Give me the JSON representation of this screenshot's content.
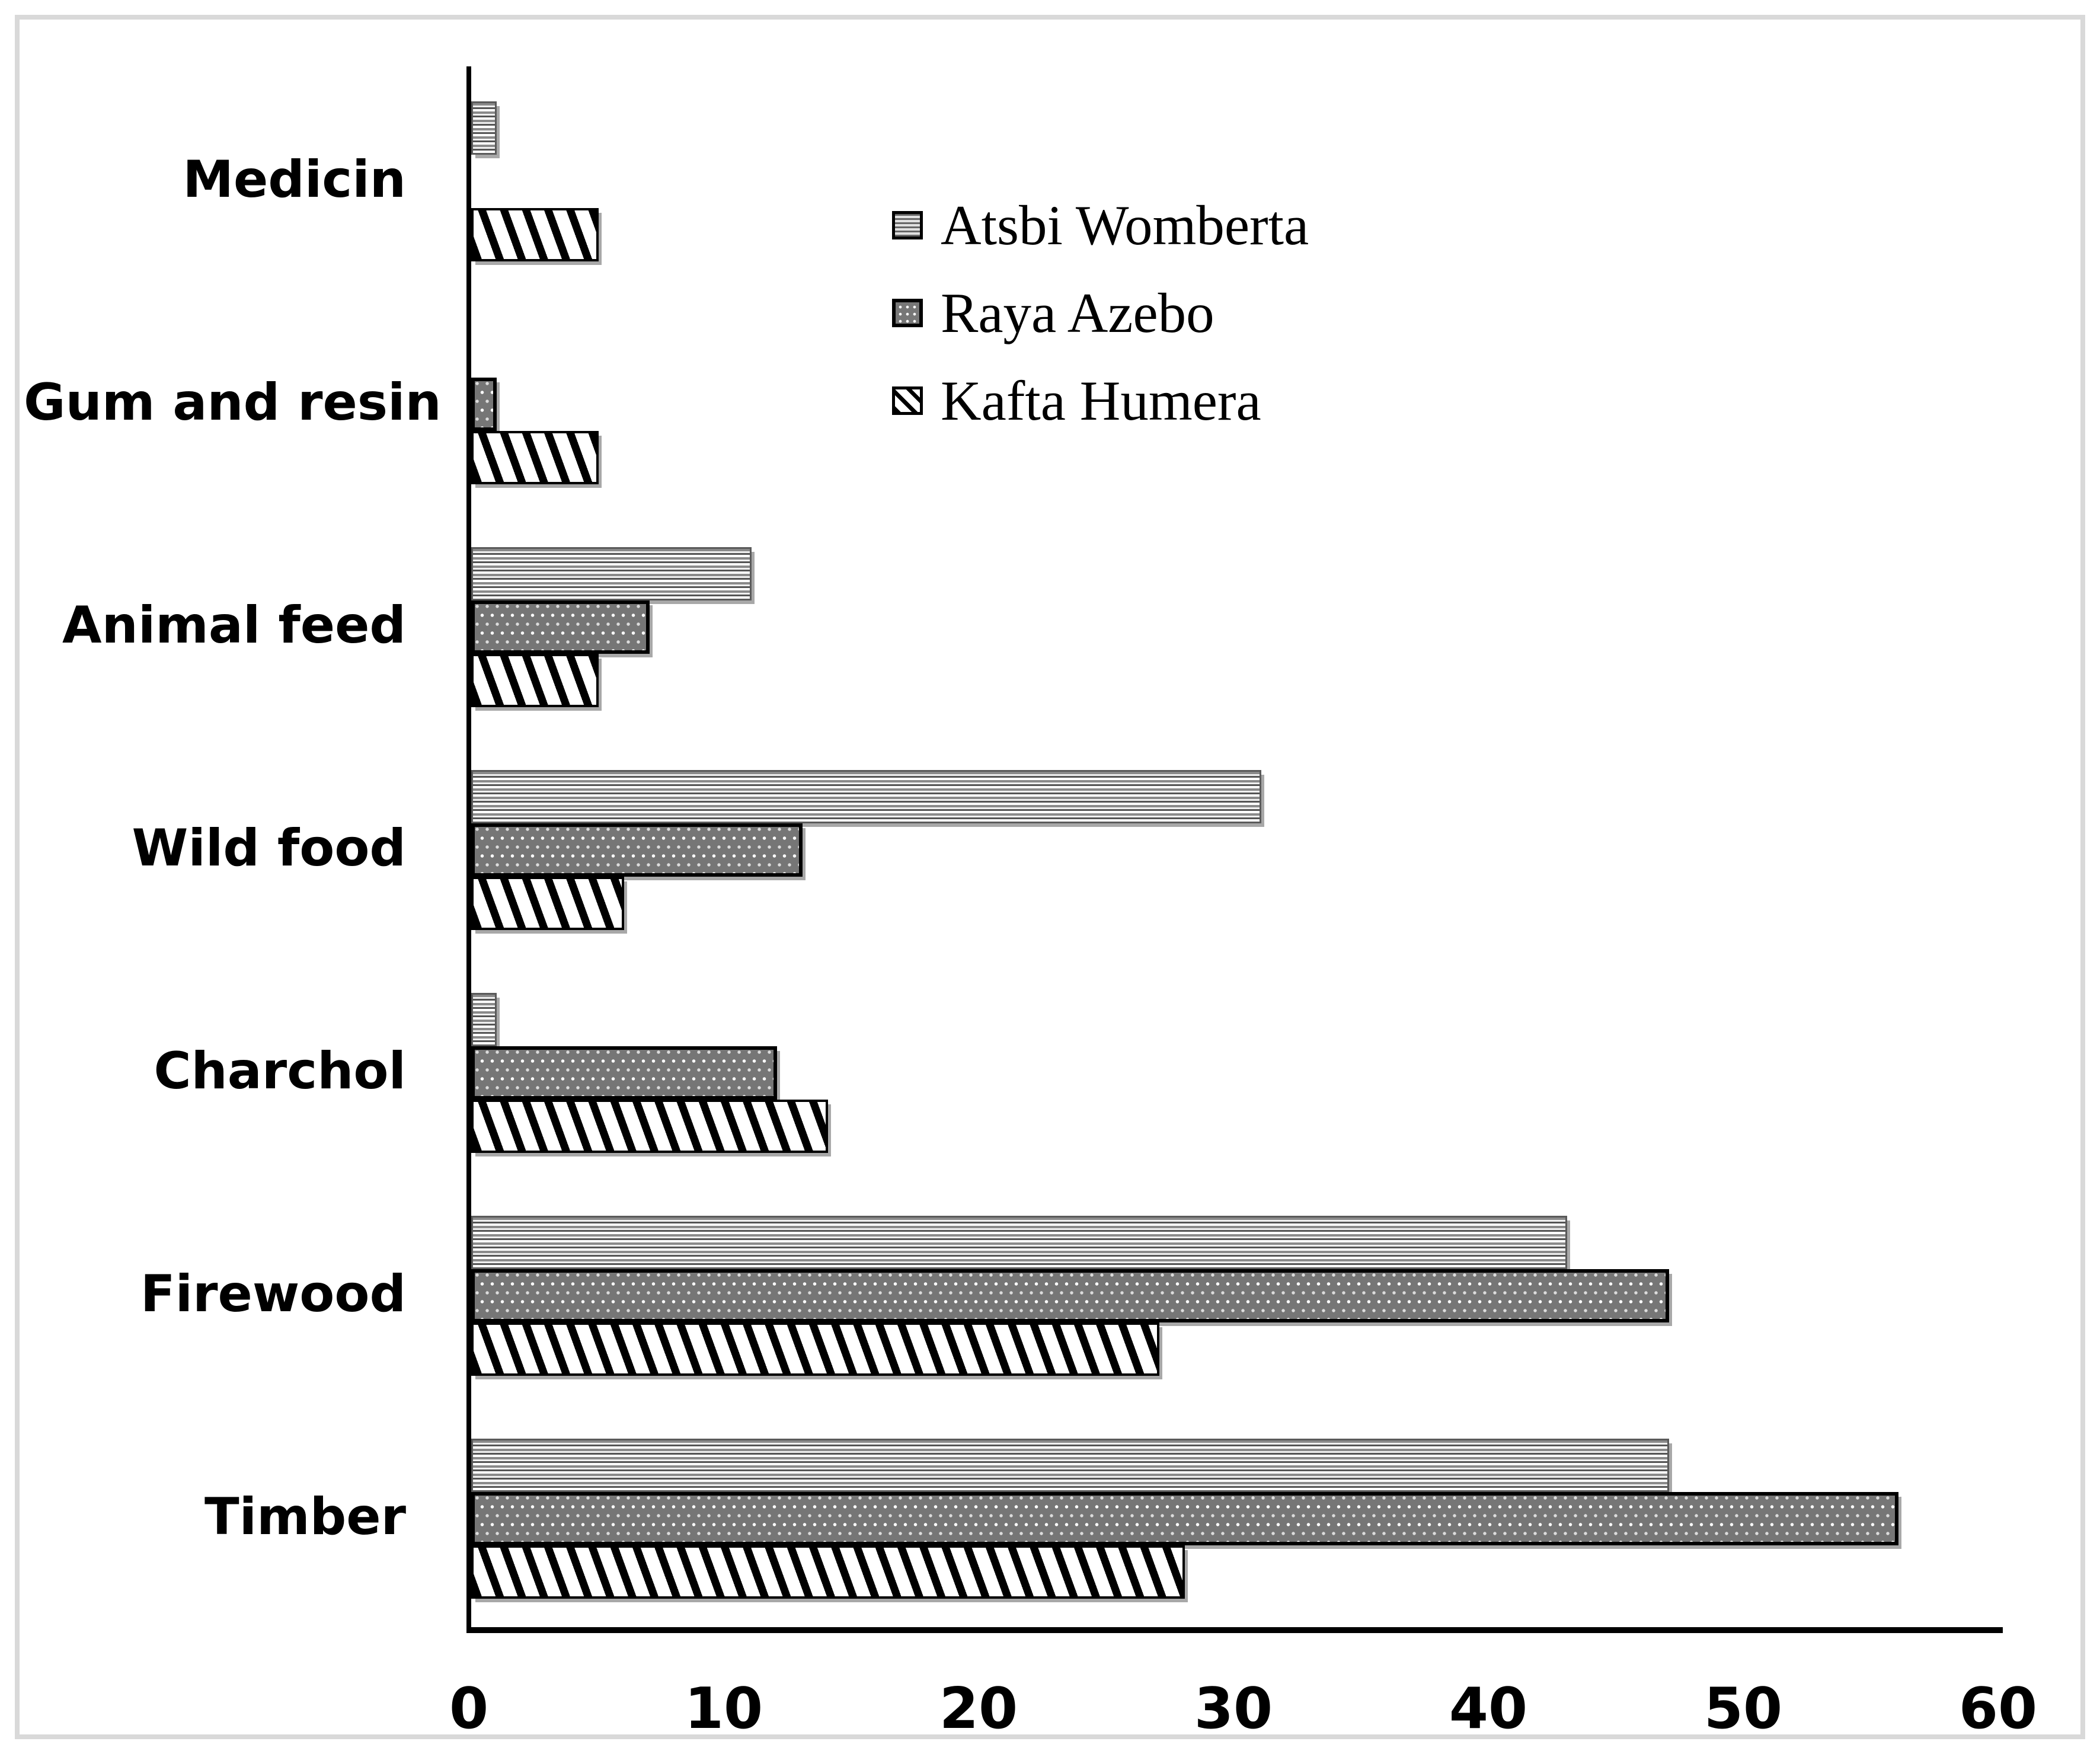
{
  "chart_data": {
    "type": "bar",
    "orientation": "horizontal",
    "title": "",
    "xlabel": "",
    "ylabel": "",
    "categories": [
      "Medicin",
      "Gum and resin",
      "Animal feed",
      "Wild food",
      "Charchol",
      "Firewood",
      "Timber"
    ],
    "series": [
      {
        "name": "Atsbi Womberta",
        "pattern": "horizontal-stripes",
        "values": [
          1,
          0,
          11,
          31,
          1,
          43,
          47
        ]
      },
      {
        "name": "Raya Azebo",
        "pattern": "white-dots-on-gray",
        "values": [
          0,
          1,
          7,
          13,
          12,
          47,
          56
        ]
      },
      {
        "name": "Kafta Humera",
        "pattern": "diagonal-stripes",
        "values": [
          5,
          5,
          5,
          6,
          14,
          27,
          28
        ]
      }
    ],
    "x_ticks": [
      0,
      10,
      20,
      30,
      40,
      50,
      60
    ],
    "xlim": [
      0,
      60
    ],
    "grid": false,
    "legend_position": "upper-center-right"
  },
  "colors": {
    "axis": "#000000",
    "bar_shadow": "#a8a8a8",
    "frame_border": "#d9d9d9",
    "pattern_dark_gray": "#767676",
    "pattern_black": "#000000",
    "background": "#ffffff"
  }
}
